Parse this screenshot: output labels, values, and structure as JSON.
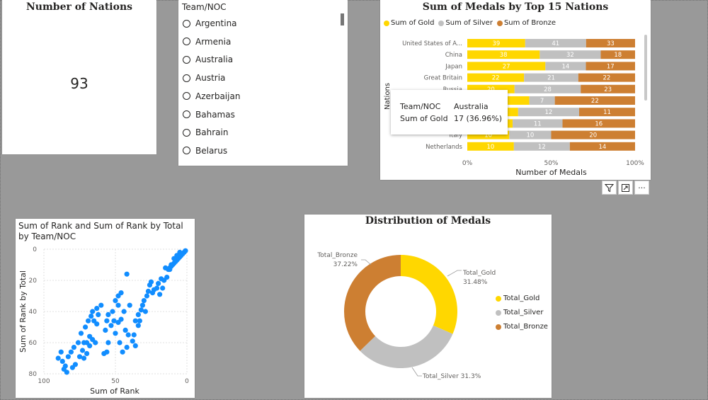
{
  "kpi": {
    "title": "Number of Nations",
    "value": "93"
  },
  "slicer": {
    "title": "Team/NOC",
    "items": [
      "Argentina",
      "Armenia",
      "Australia",
      "Austria",
      "Azerbaijan",
      "Bahamas",
      "Bahrain",
      "Belarus"
    ]
  },
  "bar_chart": {
    "title": "Sum of Medals by Top 15 Nations",
    "legend": [
      "Sum of Gold",
      "Sum of Silver",
      "Sum of Bronze"
    ],
    "xlabel": "Number of Medals",
    "ylabel": "Nations",
    "ticks": [
      "0%",
      "50%",
      "100%"
    ],
    "colors": {
      "gold": "#ffd700",
      "silver": "#c0c0c0",
      "bronze": "#cd7f32"
    }
  },
  "tooltip": {
    "rows": [
      {
        "key": "Team/NOC",
        "value": "Australia"
      },
      {
        "key": "Sum of Gold",
        "value": "17 (36.96%)"
      }
    ]
  },
  "visual_header": {
    "icons": [
      "filter-icon",
      "focus-mode-icon",
      "more-options-icon"
    ],
    "more_label": "···"
  },
  "scatter": {
    "title": "Sum of Rank and Sum of Rank by Total by Team/NOC",
    "xlabel": "Sum of Rank",
    "ylabel": "Sum of Rank by Total",
    "xticks": [
      "100",
      "50",
      "0"
    ],
    "yticks": [
      "0",
      "20",
      "40",
      "60",
      "80"
    ],
    "color": "#118dff"
  },
  "donut": {
    "title": "Distribution of Medals",
    "legend": [
      "Total_Gold",
      "Total_Silver",
      "Total_Bronze"
    ],
    "labels": {
      "gold_name": "Total_Gold",
      "gold_pct": "31.48%",
      "bronze_name": "Total_Bronze",
      "bronze_pct": "37.22%",
      "silver": "Total_Silver 31.3%"
    }
  },
  "chart_data": [
    {
      "type": "bar",
      "stacked": "100%",
      "title": "Sum of Medals by Top 15 Nations",
      "xlabel": "Number of Medals",
      "ylabel": "Nations",
      "categories": [
        "United States of A...",
        "China",
        "Japan",
        "Great Britain",
        "Russia",
        "Australia",
        "",
        "",
        "Italy",
        "Netherlands"
      ],
      "series": [
        {
          "name": "Sum of Gold",
          "values": [
            39,
            38,
            27,
            22,
            20,
            17,
            10,
            10,
            10,
            10
          ]
        },
        {
          "name": "Sum of Silver",
          "values": [
            41,
            32,
            14,
            21,
            28,
            7,
            12,
            11,
            10,
            12
          ]
        },
        {
          "name": "Sum of Bronze",
          "values": [
            33,
            18,
            17,
            22,
            23,
            22,
            11,
            16,
            20,
            14
          ]
        }
      ],
      "xlim": [
        0,
        100
      ],
      "legend_position": "top-left"
    },
    {
      "type": "scatter",
      "title": "Sum of Rank and Sum of Rank by Total by Team/NOC",
      "xlabel": "Sum of Rank",
      "ylabel": "Sum of Rank by Total",
      "xlim": [
        100,
        0
      ],
      "ylim": [
        80,
        0
      ],
      "grid": true,
      "points": [
        [
          1,
          1
        ],
        [
          2,
          2
        ],
        [
          3,
          3
        ],
        [
          4,
          4
        ],
        [
          5,
          5
        ],
        [
          6,
          6
        ],
        [
          7,
          7
        ],
        [
          8,
          8
        ],
        [
          9,
          9
        ],
        [
          10,
          10
        ],
        [
          11,
          11
        ],
        [
          12,
          12
        ],
        [
          13,
          13
        ],
        [
          5,
          2
        ],
        [
          7,
          4
        ],
        [
          9,
          6
        ],
        [
          11,
          10
        ],
        [
          12,
          13
        ],
        [
          15,
          12
        ],
        [
          14,
          18
        ],
        [
          16,
          20
        ],
        [
          18,
          19
        ],
        [
          20,
          22
        ],
        [
          17,
          25
        ],
        [
          21,
          25
        ],
        [
          23,
          26
        ],
        [
          19,
          29
        ],
        [
          24,
          28
        ],
        [
          25,
          21
        ],
        [
          26,
          23
        ],
        [
          27,
          27
        ],
        [
          28,
          30
        ],
        [
          30,
          33
        ],
        [
          31,
          36
        ],
        [
          32,
          39
        ],
        [
          29,
          40
        ],
        [
          34,
          42
        ],
        [
          33,
          46
        ],
        [
          36,
          46
        ],
        [
          34,
          49
        ],
        [
          37,
          55
        ],
        [
          38,
          59
        ],
        [
          36,
          62
        ],
        [
          42,
          16
        ],
        [
          46,
          28
        ],
        [
          48,
          30
        ],
        [
          50,
          33
        ],
        [
          48,
          36
        ],
        [
          52,
          40
        ],
        [
          55,
          42
        ],
        [
          51,
          46
        ],
        [
          48,
          47
        ],
        [
          56,
          46
        ],
        [
          53,
          49
        ],
        [
          50,
          54
        ],
        [
          55,
          60
        ],
        [
          47,
          60
        ],
        [
          42,
          63
        ],
        [
          45,
          66
        ],
        [
          56,
          66
        ],
        [
          58,
          67
        ],
        [
          64,
          60
        ],
        [
          68,
          56
        ],
        [
          66,
          58
        ],
        [
          70,
          60
        ],
        [
          68,
          62
        ],
        [
          72,
          60
        ],
        [
          70,
          67
        ],
        [
          73,
          65
        ],
        [
          75,
          69
        ],
        [
          72,
          70
        ],
        [
          78,
          74
        ],
        [
          80,
          76
        ],
        [
          84,
          79
        ],
        [
          62,
          42
        ],
        [
          65,
          46
        ],
        [
          67,
          43
        ],
        [
          69,
          46
        ],
        [
          71,
          50
        ],
        [
          74,
          54
        ],
        [
          76,
          60
        ],
        [
          79,
          63
        ],
        [
          81,
          66
        ],
        [
          83,
          69
        ],
        [
          85,
          75
        ],
        [
          86,
          77
        ],
        [
          88,
          66
        ],
        [
          90,
          70
        ],
        [
          87,
          72
        ],
        [
          60,
          36
        ],
        [
          63,
          38
        ],
        [
          66,
          40
        ],
        [
          40,
          36
        ],
        [
          44,
          40
        ],
        [
          46,
          45
        ],
        [
          43,
          52
        ],
        [
          41,
          55
        ],
        [
          63,
          48
        ],
        [
          57,
          52
        ]
      ]
    },
    {
      "type": "pie",
      "donut": true,
      "title": "Distribution of Medals",
      "slices": [
        {
          "name": "Total_Gold",
          "value": 31.48
        },
        {
          "name": "Total_Silver",
          "value": 31.3
        },
        {
          "name": "Total_Bronze",
          "value": 37.22
        }
      ],
      "legend_position": "right"
    }
  ]
}
